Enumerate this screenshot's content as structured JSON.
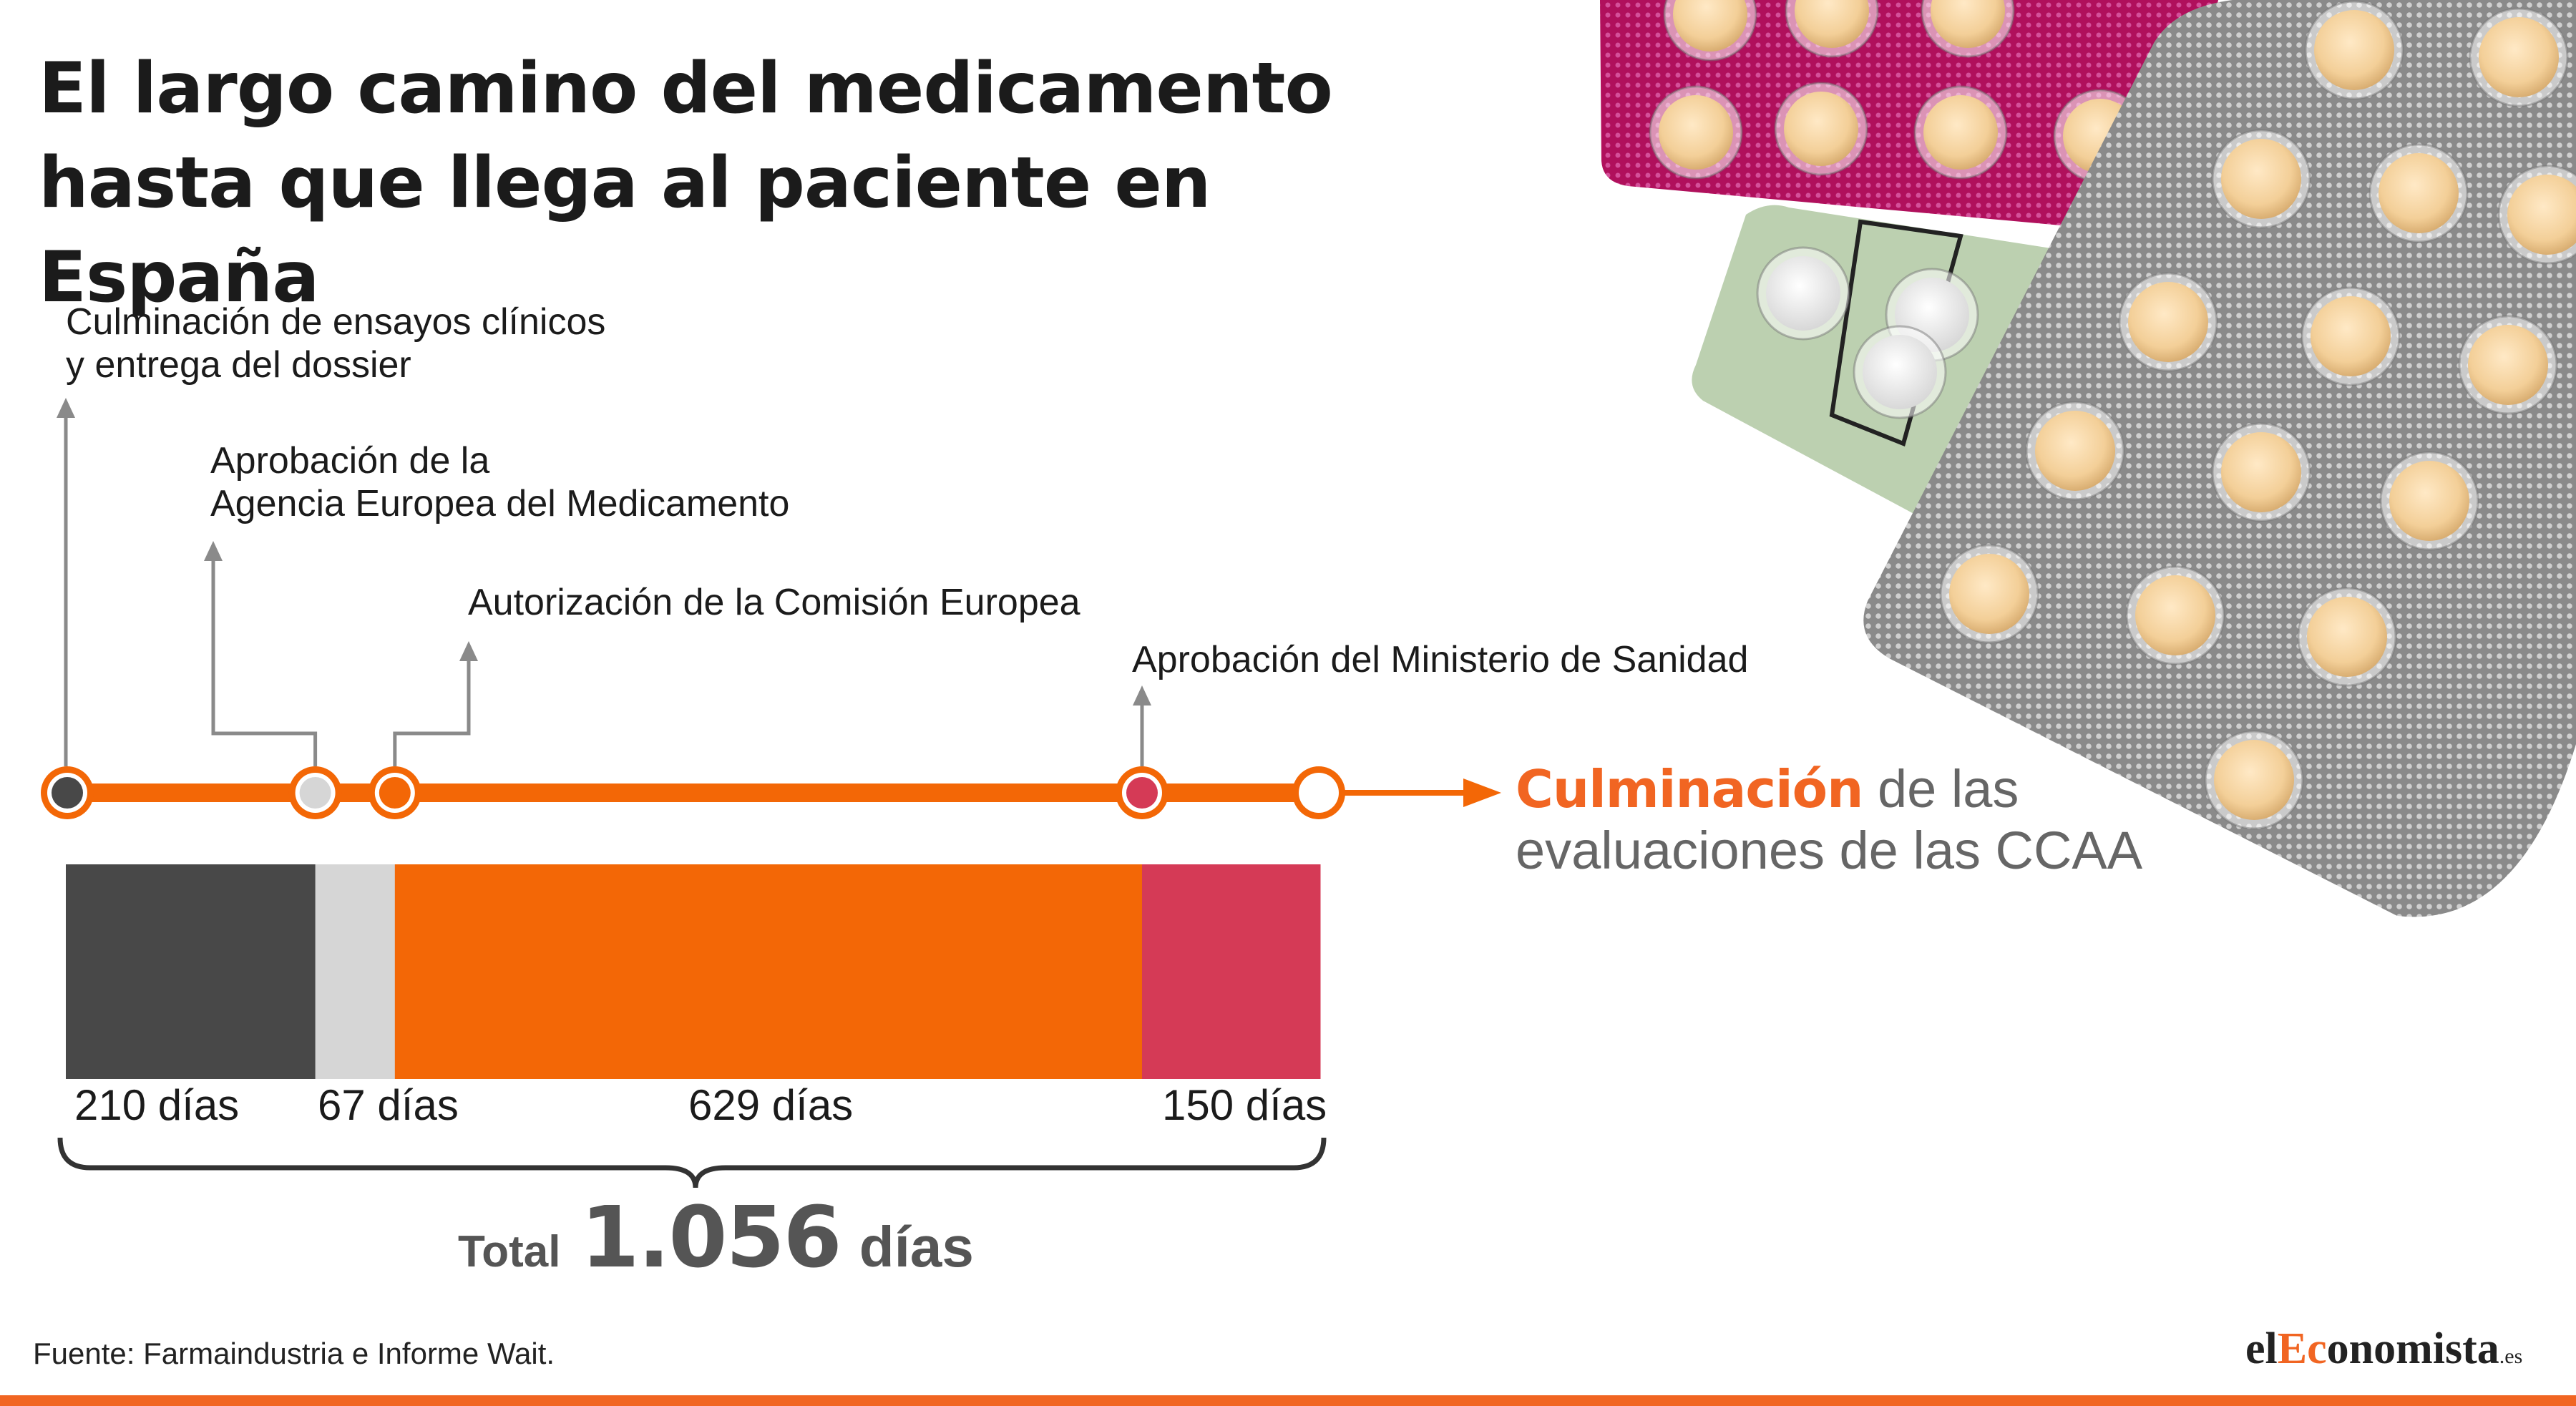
{
  "title_lines": [
    "El largo camino del medicamento",
    "hasta que llega al paciente en España"
  ],
  "milestones": [
    {
      "lines": [
        "Culminación de ensayos clínicos",
        "y entrega del dossier"
      ]
    },
    {
      "lines": [
        "Aprobación de la",
        "Agencia Europea del Medicamento"
      ]
    },
    {
      "lines": [
        "Autorización de la Comisión Europea"
      ]
    },
    {
      "lines": [
        "Aprobación del Ministerio de Sanidad"
      ]
    }
  ],
  "end_label": {
    "bold": "Culminación",
    "line1_rest": " de las",
    "line2": "evaluaciones de las CCAA"
  },
  "chart_data": {
    "type": "bar",
    "orientation": "horizontal-stacked",
    "unit": "días",
    "categories": [
      "210 días",
      "67 días",
      "629 días",
      "150 días"
    ],
    "values": [
      210,
      67,
      629,
      150
    ],
    "colors": [
      "#484848",
      "#d6d6d6",
      "#f36706",
      "#d53a56"
    ],
    "node_colors": [
      "#484848",
      "#d6d6d6",
      "#f36706",
      "#d53a56",
      "#ffffff"
    ],
    "line_color": "#f36706",
    "total": 1056
  },
  "total": {
    "label": "Total",
    "value": "1.056",
    "unit": "días"
  },
  "source": "Fuente: Farmaindustria e Informe Wait.",
  "logo": {
    "pre": "el",
    "highlight": "Ec",
    "post": "onomista",
    "suffix": ".es"
  },
  "colors": {
    "accent": "#f16522",
    "dark": "#484848",
    "light": "#d6d6d6",
    "red": "#d53a56"
  }
}
